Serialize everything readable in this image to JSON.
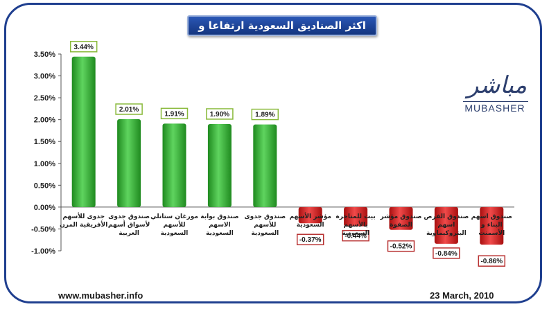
{
  "header": {
    "title": "اكثر الصناديق السعودية ارتفاعا و تراجعا"
  },
  "logo": {
    "arabic": "مباشر",
    "latin": "MUBASHER"
  },
  "footer": {
    "website": "www.mubasher.info",
    "date": "23 March, 2010"
  },
  "colors": {
    "positive": "#2fa82f",
    "negative": "#d42020",
    "frame": "#1f3f8f",
    "positive_label_border": "#8aba3c",
    "negative_label_border": "#b83232"
  },
  "chart_data": {
    "type": "bar",
    "title": "اكثر الصناديق السعودية ارتفاعا و تراجعا",
    "xlabel": "",
    "ylabel": "",
    "ylim": [
      -0.01,
      0.035
    ],
    "yticks": [
      "3.50%",
      "3.00%",
      "2.50%",
      "2.00%",
      "1.50%",
      "1.00%",
      "0.50%",
      "0.00%",
      "-0.50%",
      "-1.00%"
    ],
    "grid": false,
    "legend": "none",
    "categories": [
      [
        "جدوى للأسهم",
        "الأفريقية المرن"
      ],
      [
        "صندوق جدوى",
        "لأسواق أسهم",
        "العربية"
      ],
      [
        "مورغان ستانلي",
        "للأسهم",
        "السعودية"
      ],
      [
        "صندوق بوابة",
        "الاسهم",
        "السعودية"
      ],
      [
        "صندوق جدوى",
        "للأسهم",
        "السعودية"
      ],
      [
        "مؤشر الأسهم",
        "السعودية"
      ],
      [
        "بيت للمتاجرة",
        "بالأسهم",
        "السعودية"
      ],
      [
        "صندوق مؤشر",
        "الصفوة"
      ],
      [
        "صندوق الفرص",
        "اسهم",
        "البتروكيماوية"
      ],
      [
        "صندوق اسهم",
        "البناء و",
        "الأسمنت"
      ]
    ],
    "values": [
      0.0344,
      0.0201,
      0.0191,
      0.019,
      0.0189,
      -0.0037,
      -0.0044,
      -0.0052,
      -0.0084,
      -0.0086
    ],
    "data_labels": [
      "3.44%",
      "2.01%",
      "1.91%",
      "1.90%",
      "1.89%",
      "-0.37%",
      "-0.44%",
      "-0.52%",
      "-0.84%",
      "-0.86%"
    ]
  }
}
